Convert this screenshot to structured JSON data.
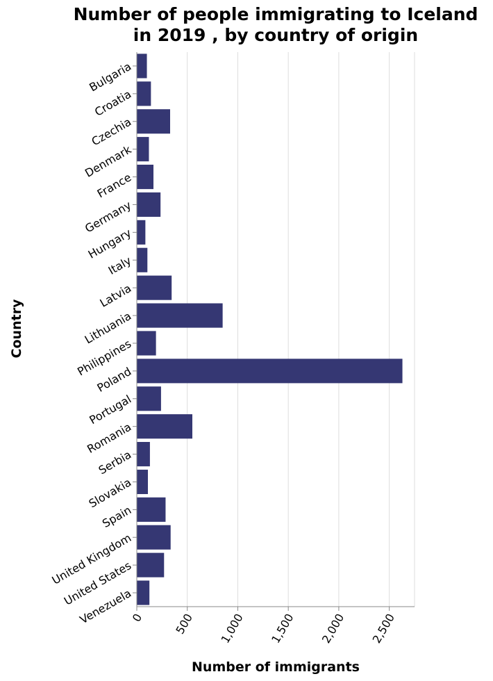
{
  "chart_data": {
    "type": "bar",
    "orientation": "horizontal",
    "title_lines": [
      "Number of people immigrating to Iceland",
      "in 2019 , by country of origin"
    ],
    "xlabel": "Number of immigrants",
    "ylabel": "Country",
    "xlim": [
      0,
      2750
    ],
    "xticks": [
      0,
      500,
      1000,
      1500,
      2000,
      2500
    ],
    "xtick_labels": [
      "0",
      "500",
      "1,000",
      "1,500",
      "2,000",
      "2,500"
    ],
    "grid": true,
    "bar_color": "#353773",
    "categories": [
      "Bulgaria",
      "Croatia",
      "Czechia",
      "Denmark",
      "France",
      "Germany",
      "Hungary",
      "Italy",
      "Latvia",
      "Lithuania",
      "Philippines",
      "Poland",
      "Portugal",
      "Romania",
      "Serbia",
      "Slovakia",
      "Spain",
      "United Kingdom",
      "United States",
      "Venezuela"
    ],
    "values": [
      100,
      140,
      330,
      120,
      165,
      235,
      85,
      105,
      345,
      850,
      190,
      2630,
      240,
      550,
      130,
      110,
      285,
      335,
      270,
      125
    ]
  }
}
